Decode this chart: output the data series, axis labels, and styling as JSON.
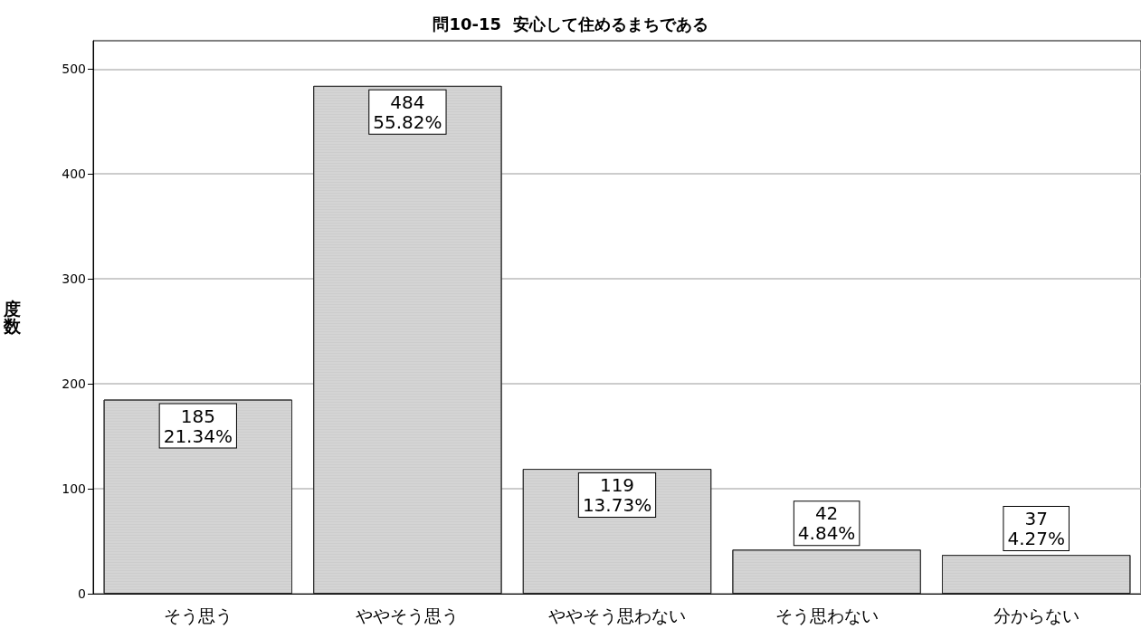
{
  "chart_data": {
    "type": "bar",
    "title": "問10-15  安心して住めるまちである",
    "ylabel": "度数",
    "categories": [
      "そう思う",
      "ややそう思う",
      "ややそう思わない",
      "そう思わない",
      "分からない"
    ],
    "values": [
      185,
      484,
      119,
      42,
      37
    ],
    "value_labels": [
      "185\n21.34%",
      "484\n55.82%",
      "119\n13.73%",
      "42\n4.84%",
      "37\n4.27%"
    ],
    "color": "#d4d4d4",
    "ylim": [
      0,
      527
    ],
    "yticks": [
      0,
      100,
      200,
      300,
      400,
      500
    ],
    "grid": "y"
  }
}
